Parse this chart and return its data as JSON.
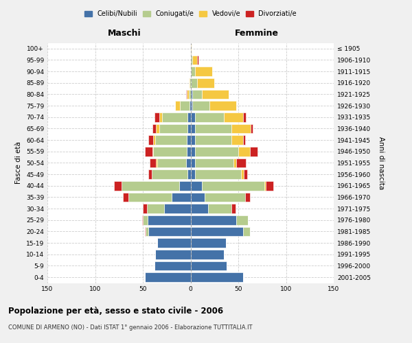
{
  "age_groups": [
    "100+",
    "95-99",
    "90-94",
    "85-89",
    "80-84",
    "75-79",
    "70-74",
    "65-69",
    "60-64",
    "55-59",
    "50-54",
    "45-49",
    "40-44",
    "35-39",
    "30-34",
    "25-29",
    "20-24",
    "15-19",
    "10-14",
    "5-9",
    "0-4"
  ],
  "birth_years": [
    "≤ 1905",
    "1906-1910",
    "1911-1915",
    "1916-1920",
    "1921-1925",
    "1926-1930",
    "1931-1935",
    "1936-1940",
    "1941-1945",
    "1946-1950",
    "1951-1955",
    "1956-1960",
    "1961-1965",
    "1966-1970",
    "1971-1975",
    "1976-1980",
    "1981-1985",
    "1986-1990",
    "1991-1995",
    "1996-2000",
    "2001-2005"
  ],
  "colors": {
    "celibi": "#4472a8",
    "coniugati": "#b5cc8e",
    "vedovi": "#f5c842",
    "divorziati": "#cc2222"
  },
  "males": {
    "celibi": [
      0,
      0,
      0,
      0,
      0,
      1,
      3,
      3,
      4,
      4,
      5,
      3,
      12,
      20,
      28,
      45,
      44,
      35,
      37,
      38,
      48
    ],
    "coniugati": [
      0,
      0,
      0,
      1,
      2,
      10,
      27,
      30,
      33,
      35,
      30,
      38,
      60,
      45,
      18,
      5,
      3,
      0,
      0,
      0,
      0
    ],
    "vedovi": [
      0,
      0,
      0,
      1,
      2,
      5,
      3,
      3,
      2,
      1,
      1,
      0,
      0,
      0,
      0,
      0,
      0,
      0,
      0,
      0,
      0
    ],
    "divorziati": [
      0,
      0,
      0,
      0,
      1,
      0,
      5,
      4,
      5,
      8,
      7,
      3,
      8,
      6,
      4,
      1,
      1,
      0,
      0,
      0,
      0
    ]
  },
  "females": {
    "celibi": [
      0,
      0,
      0,
      0,
      2,
      2,
      5,
      5,
      5,
      5,
      5,
      5,
      12,
      15,
      18,
      48,
      55,
      37,
      35,
      38,
      55
    ],
    "coniugati": [
      0,
      2,
      5,
      7,
      10,
      18,
      30,
      38,
      38,
      45,
      40,
      48,
      65,
      42,
      25,
      12,
      7,
      0,
      0,
      0,
      0
    ],
    "vedovi": [
      1,
      5,
      18,
      18,
      28,
      28,
      20,
      20,
      12,
      12,
      3,
      3,
      2,
      0,
      0,
      0,
      0,
      0,
      0,
      0,
      0
    ],
    "divorziati": [
      0,
      1,
      0,
      0,
      0,
      0,
      3,
      2,
      2,
      8,
      10,
      3,
      8,
      5,
      4,
      0,
      0,
      0,
      0,
      0,
      0
    ]
  },
  "title": "Popolazione per età, sesso e stato civile - 2006",
  "subtitle": "COMUNE DI ARMENO (NO) - Dati ISTAT 1° gennaio 2006 - Elaborazione TUTTITALIA.IT",
  "label_maschi": "Maschi",
  "label_femmine": "Femmine",
  "ylabel_left": "Fasce di età",
  "ylabel_right": "Anni di nascita",
  "xlim": 150,
  "bg_color": "#f0f0f0",
  "plot_bg": "#ffffff",
  "legend_labels": [
    "Celibi/Nubili",
    "Coniugati/e",
    "Vedovi/e",
    "Divorziati/e"
  ],
  "cat_keys": [
    "celibi",
    "coniugati",
    "vedovi",
    "divorziati"
  ]
}
